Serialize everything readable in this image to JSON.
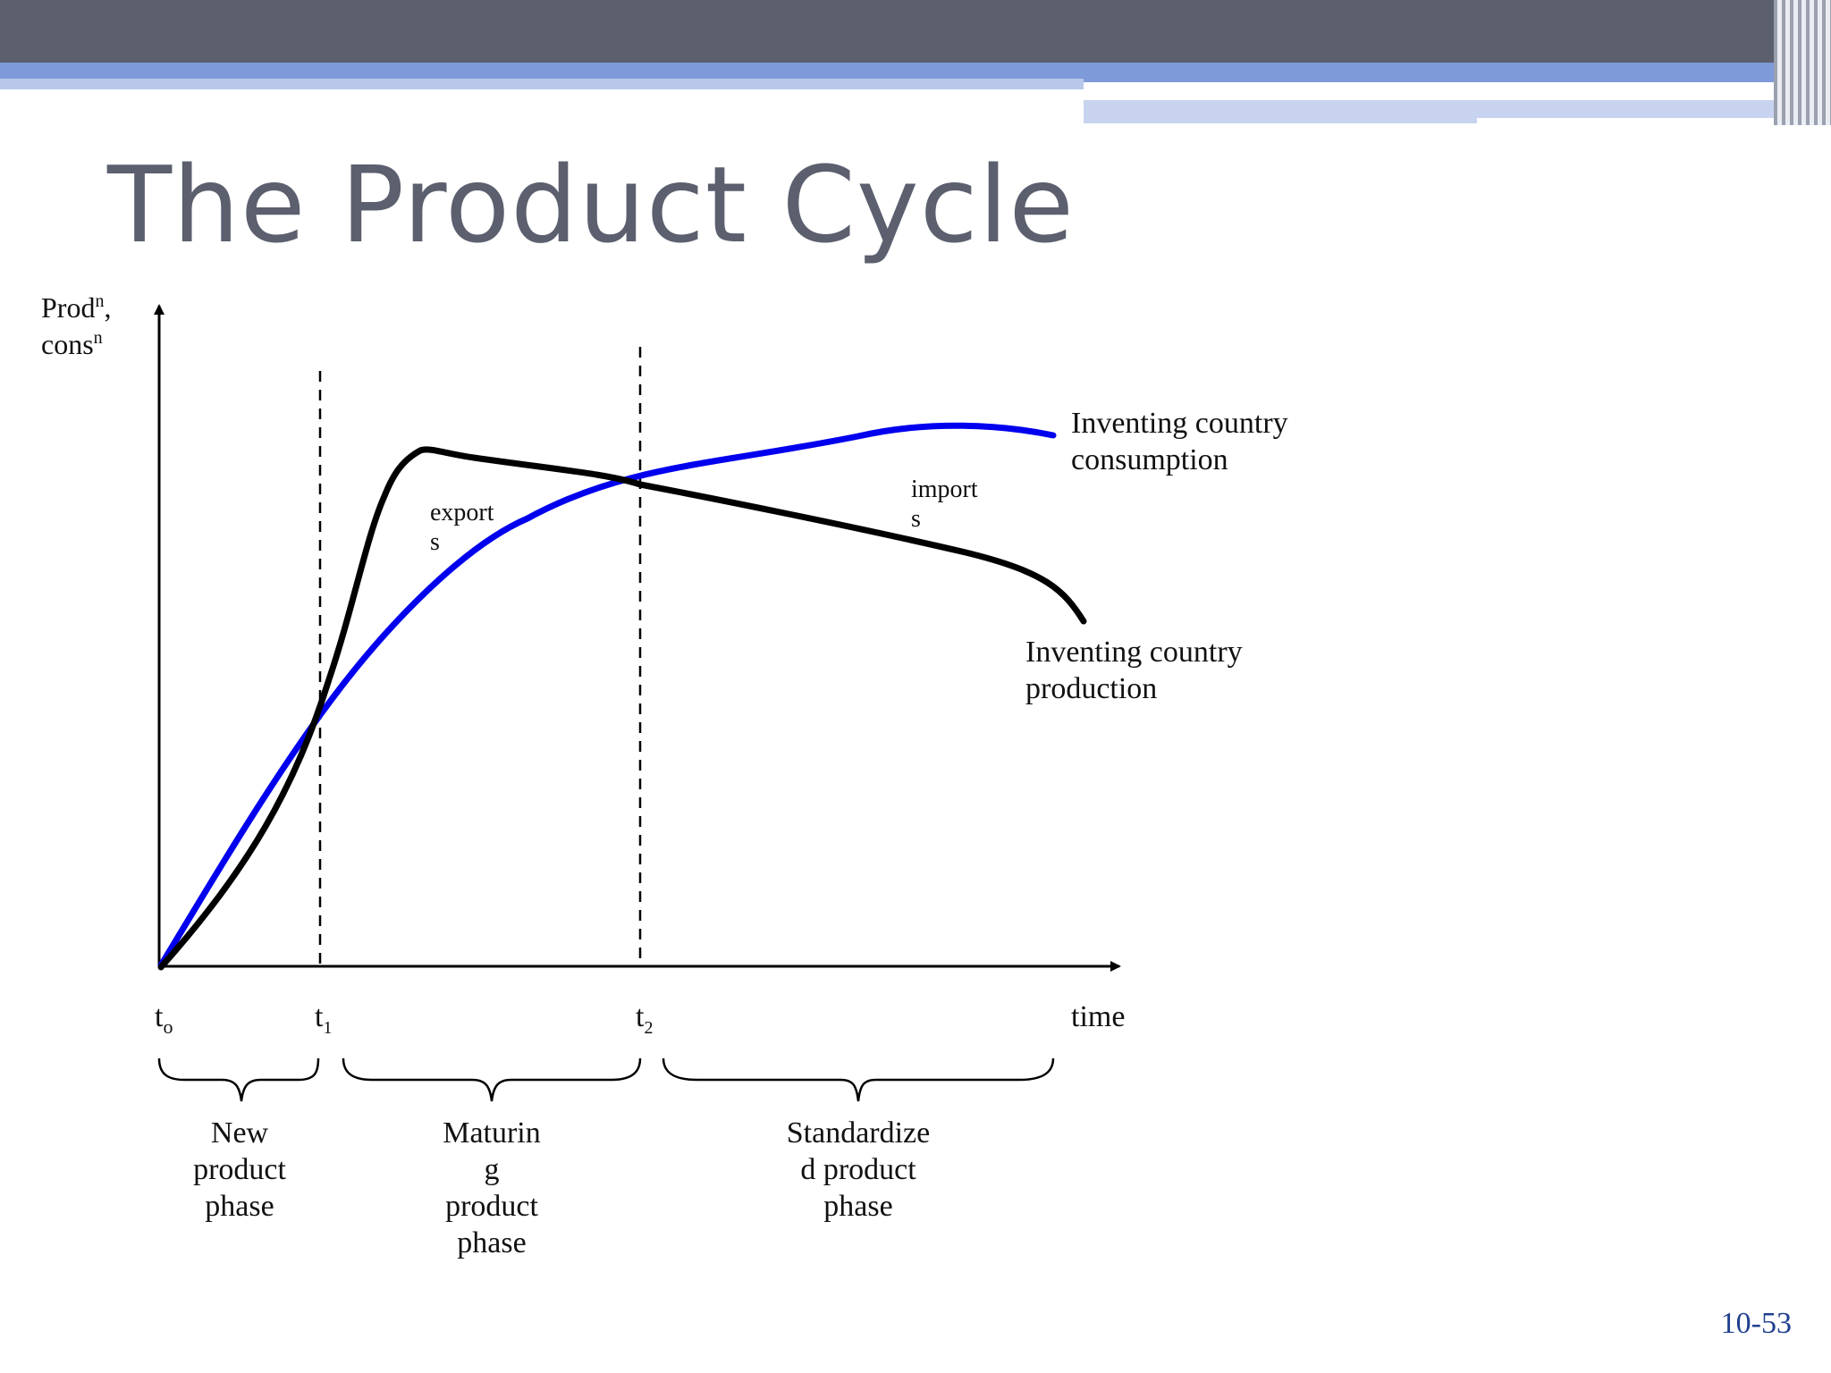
{
  "slide": {
    "title": "The Product Cycle",
    "page_number": "10-53"
  },
  "colors": {
    "header_dark": "#5b5f6e",
    "header_accent": "#7e9ad8",
    "consumption_line": "#0000ee",
    "production_line": "#000000",
    "page_number": "#1f3f8f"
  },
  "diagram": {
    "y_axis_label": {
      "line1_base": "Prod",
      "line1_sup": "n",
      "line1_suffix": ",",
      "line2_base": "cons",
      "line2_sup": "n"
    },
    "x_axis_label": "time",
    "time_marks": [
      {
        "base": "t",
        "sub": "o"
      },
      {
        "base": "t",
        "sub": "1"
      },
      {
        "base": "t",
        "sub": "2"
      }
    ],
    "curves": {
      "consumption": {
        "label_line1": "Inventing country",
        "label_line2": "consumption"
      },
      "production": {
        "label_line1": "Inventing country",
        "label_line2": "production"
      }
    },
    "annotations": {
      "exports": {
        "line1": "export",
        "line2": "s"
      },
      "imports": {
        "line1": "import",
        "line2": "s"
      }
    },
    "phases": [
      {
        "lines": [
          "New",
          "product",
          "phase"
        ]
      },
      {
        "lines": [
          "Maturin",
          "g",
          "product",
          "phase"
        ]
      },
      {
        "lines": [
          "Standardize",
          "d product",
          "phase"
        ]
      }
    ]
  }
}
